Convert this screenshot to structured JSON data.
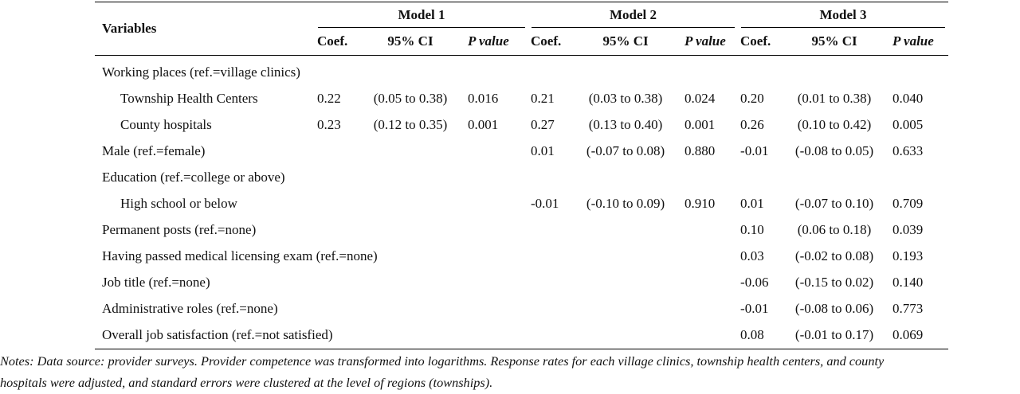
{
  "table": {
    "variables_label": "Variables",
    "models": [
      "Model 1",
      "Model 2",
      "Model 3"
    ],
    "sub_headers": {
      "coef": "Coef.",
      "ci": "95% CI",
      "p": "P value"
    },
    "rows": [
      {
        "label": "Working places (ref.=village clinics)",
        "indent": false,
        "m1": [
          "",
          "",
          ""
        ],
        "m2": [
          "",
          "",
          ""
        ],
        "m3": [
          "",
          "",
          ""
        ]
      },
      {
        "label": "Township Health Centers",
        "indent": true,
        "m1": [
          "0.22",
          "(0.05 to 0.38)",
          "0.016"
        ],
        "m2": [
          "0.21",
          "(0.03 to 0.38)",
          "0.024"
        ],
        "m3": [
          "0.20",
          "(0.01 to 0.38)",
          "0.040"
        ]
      },
      {
        "label": "County hospitals",
        "indent": true,
        "m1": [
          "0.23",
          "(0.12 to 0.35)",
          "0.001"
        ],
        "m2": [
          "0.27",
          "(0.13 to 0.40)",
          "0.001"
        ],
        "m3": [
          "0.26",
          "(0.10 to 0.42)",
          "0.005"
        ]
      },
      {
        "label": "Male (ref.=female)",
        "indent": false,
        "m1": [
          "",
          "",
          ""
        ],
        "m2": [
          "0.01",
          "(-0.07 to 0.08)",
          "0.880"
        ],
        "m3": [
          "-0.01",
          "(-0.08 to 0.05)",
          "0.633"
        ]
      },
      {
        "label": "Education (ref.=college or above)",
        "indent": false,
        "m1": [
          "",
          "",
          ""
        ],
        "m2": [
          "",
          "",
          ""
        ],
        "m3": [
          "",
          "",
          ""
        ]
      },
      {
        "label": "High school or below",
        "indent": true,
        "m1": [
          "",
          "",
          ""
        ],
        "m2": [
          "-0.01",
          "(-0.10 to 0.09)",
          "0.910"
        ],
        "m3": [
          "0.01",
          "(-0.07 to 0.10)",
          "0.709"
        ]
      },
      {
        "label": "Permanent posts (ref.=none)",
        "indent": false,
        "m1": [
          "",
          "",
          ""
        ],
        "m2": [
          "",
          "",
          ""
        ],
        "m3": [
          "0.10",
          "(0.06 to 0.18)",
          "0.039"
        ]
      },
      {
        "label": "Having passed medical licensing exam (ref.=none)",
        "indent": false,
        "m1": [
          "",
          "",
          ""
        ],
        "m2": [
          "",
          "",
          ""
        ],
        "m3": [
          "0.03",
          "(-0.02 to 0.08)",
          "0.193"
        ]
      },
      {
        "label": "Job title (ref.=none)",
        "indent": false,
        "m1": [
          "",
          "",
          ""
        ],
        "m2": [
          "",
          "",
          ""
        ],
        "m3": [
          "-0.06",
          "(-0.15 to 0.02)",
          "0.140"
        ]
      },
      {
        "label": "Administrative roles (ref.=none)",
        "indent": false,
        "m1": [
          "",
          "",
          ""
        ],
        "m2": [
          "",
          "",
          ""
        ],
        "m3": [
          "-0.01",
          "(-0.08 to 0.06)",
          "0.773"
        ]
      },
      {
        "label": "Overall job satisfaction (ref.=not satisfied)",
        "indent": false,
        "m1": [
          "",
          "",
          ""
        ],
        "m2": [
          "",
          "",
          ""
        ],
        "m3": [
          "0.08",
          "(-0.01 to 0.17)",
          "0.069"
        ]
      }
    ]
  },
  "notes": {
    "line1": "Notes: Data source: provider surveys. Provider competence was transformed into logarithms. Response rates for each village clinics, township health centers, and county",
    "line2": "hospitals were adjusted, and standard errors were clustered at the level of regions (townships)."
  }
}
